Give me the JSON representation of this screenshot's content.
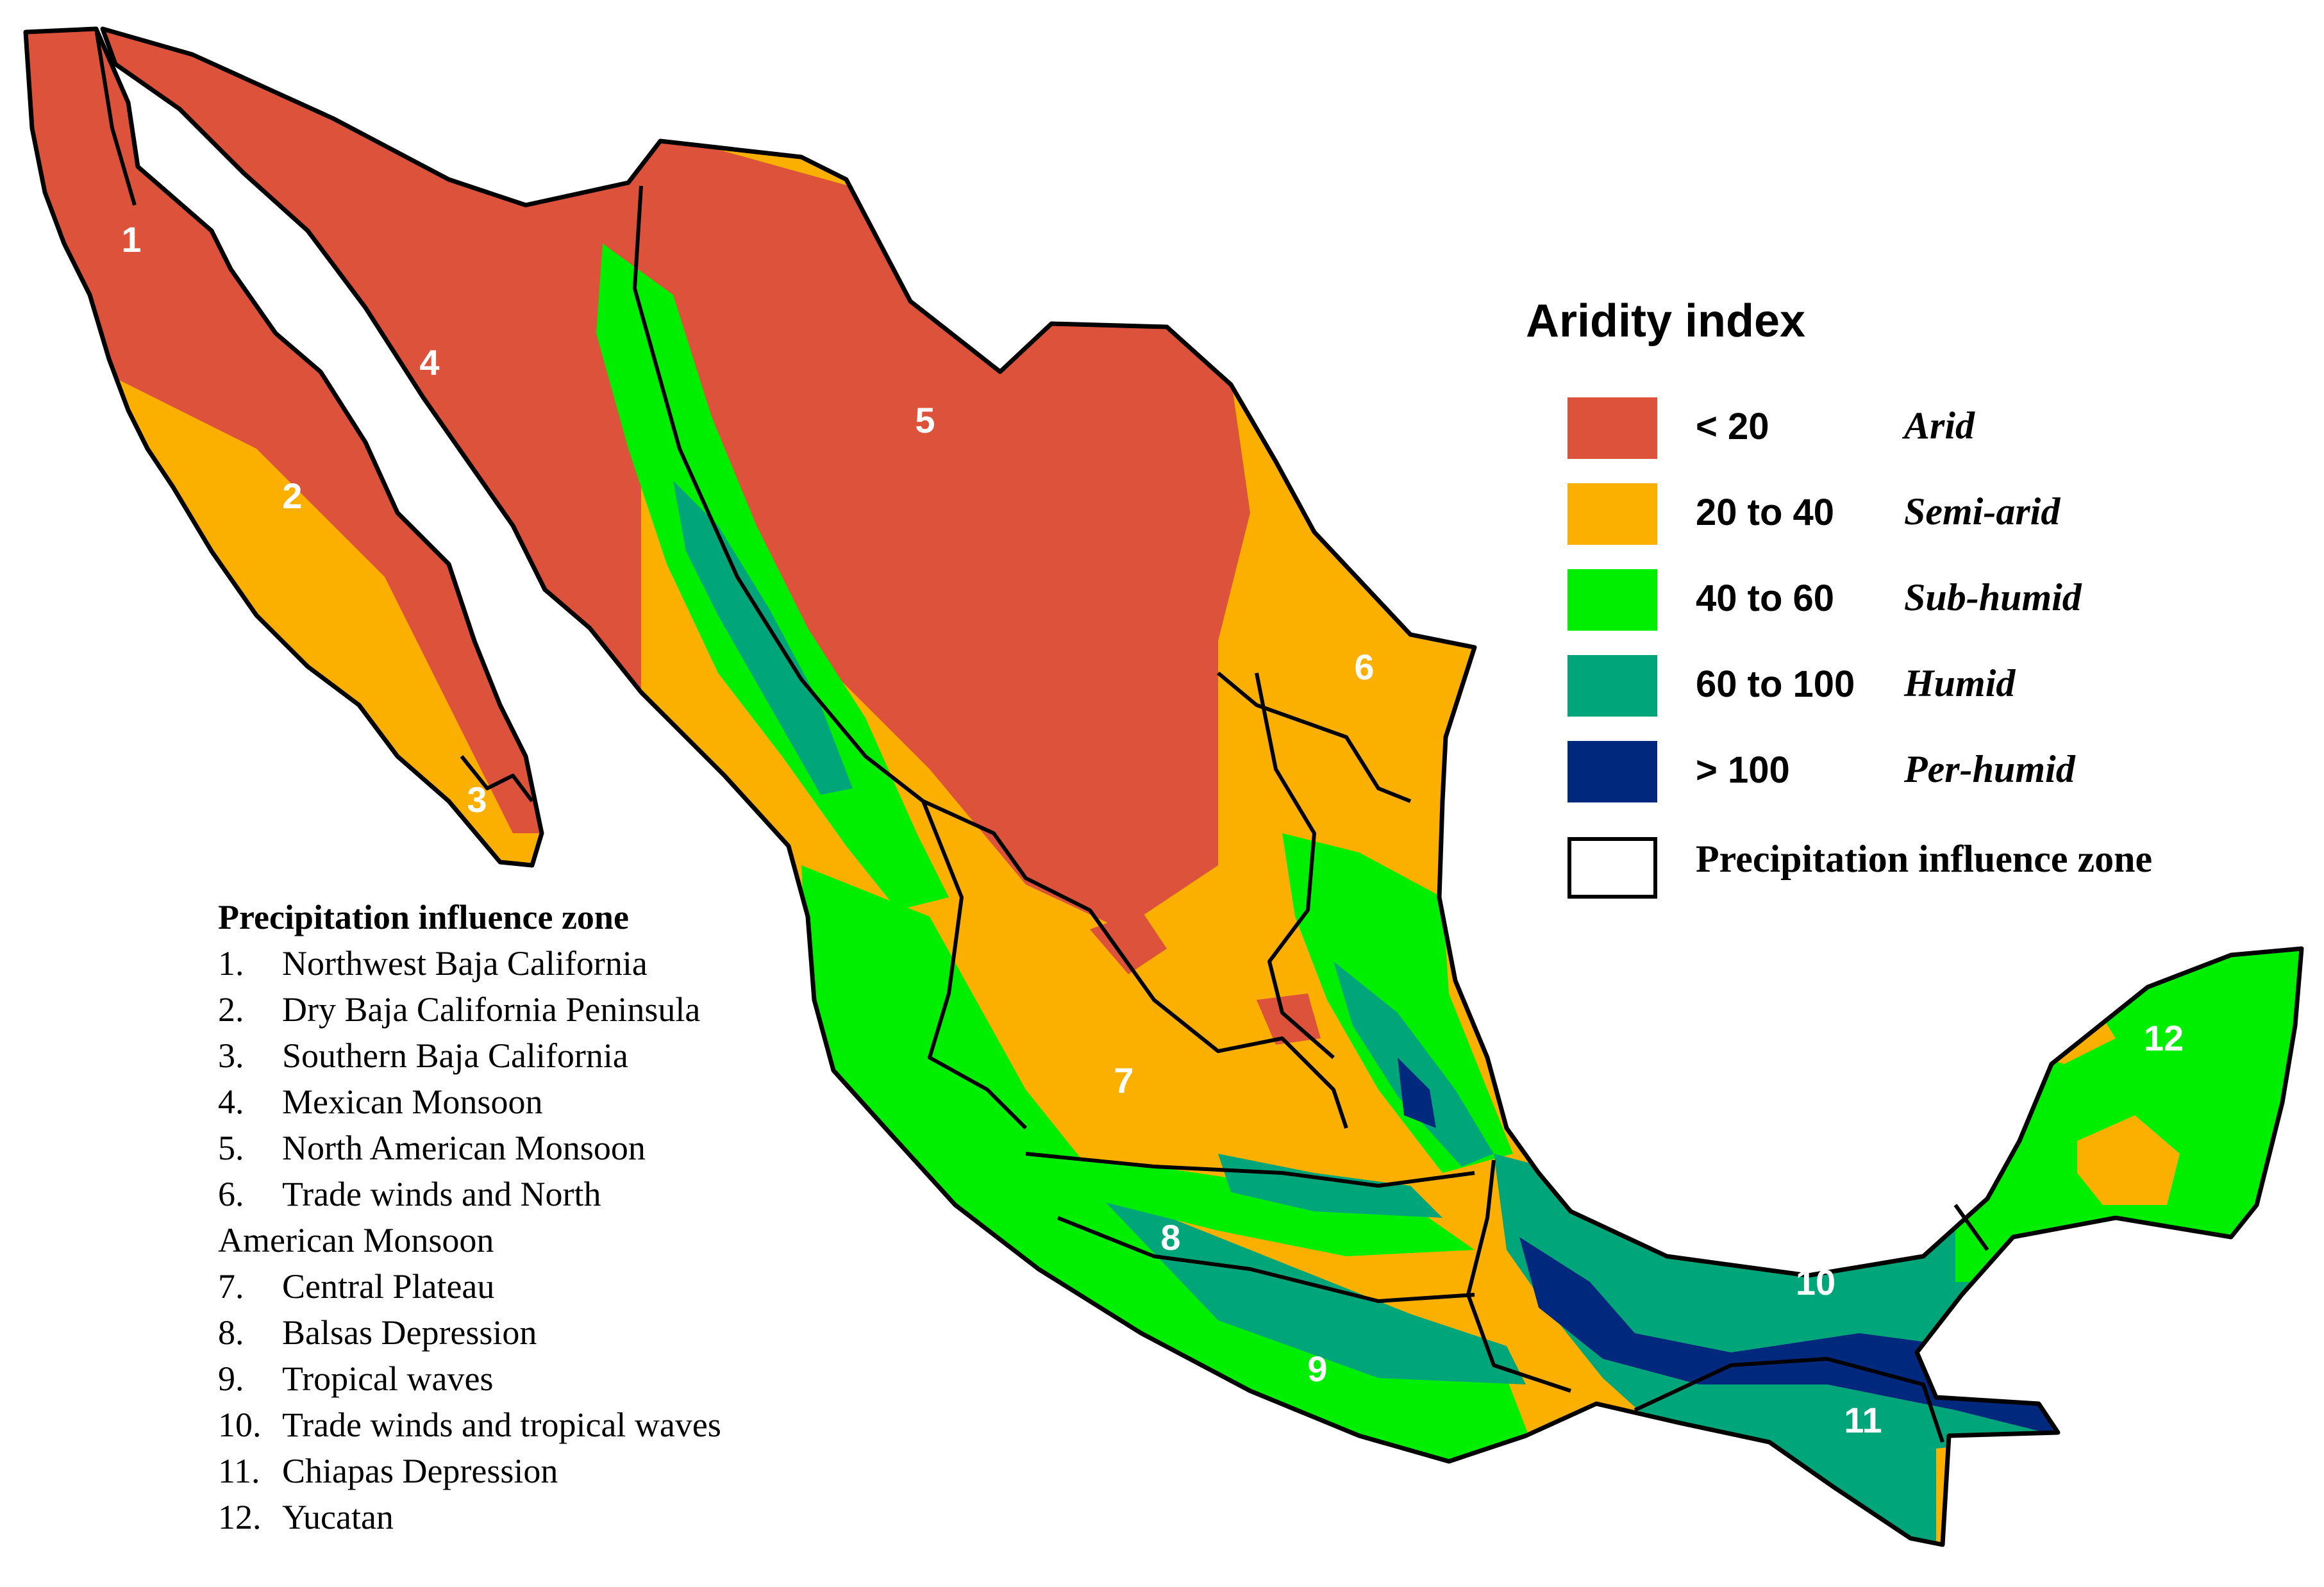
{
  "legend": {
    "title": "Aridity index",
    "classes": [
      {
        "range": "< 20",
        "name": "Arid",
        "color": "#dd523b"
      },
      {
        "range": "20 to 40",
        "name": "Semi-arid",
        "color": "#fbb000"
      },
      {
        "range": "40 to 60",
        "name": "Sub-humid",
        "color": "#00ee00"
      },
      {
        "range": "60 to 100",
        "name": "Humid",
        "color": "#00a67a"
      },
      {
        "range": "> 100",
        "name": "Per-humid",
        "color": "#00287d"
      }
    ],
    "zone_outline_label": "Precipitation influence zone"
  },
  "zone_list": {
    "title": "Precipitation influence zone",
    "items": [
      {
        "num": "1.",
        "name": "Northwest Baja California"
      },
      {
        "num": "2.",
        "name": "Dry Baja California Peninsula"
      },
      {
        "num": "3.",
        "name": "Southern Baja California"
      },
      {
        "num": "4.",
        "name": "Mexican Monsoon"
      },
      {
        "num": "5.",
        "name": "North American Monsoon"
      },
      {
        "num": "6.",
        "name": "Trade winds and North",
        "cont": "American Monsoon"
      },
      {
        "num": "7.",
        "name": "Central Plateau"
      },
      {
        "num": "8.",
        "name": "Balsas Depression"
      },
      {
        "num": "9.",
        "name": "Tropical waves"
      },
      {
        "num": "10.",
        "name": "Trade winds and tropical waves"
      },
      {
        "num": "11.",
        "name": "Chiapas Depression"
      },
      {
        "num": "12.",
        "name": "Yucatan"
      }
    ]
  },
  "map": {
    "zone_labels": [
      "1",
      "2",
      "3",
      "4",
      "5",
      "6",
      "7",
      "8",
      "9",
      "10",
      "11",
      "12"
    ],
    "colors": {
      "arid": "#dd523b",
      "semi_arid": "#fbb000",
      "sub_humid": "#00ee00",
      "humid": "#00a67a",
      "per_humid": "#00287d",
      "border": "#000000"
    }
  }
}
